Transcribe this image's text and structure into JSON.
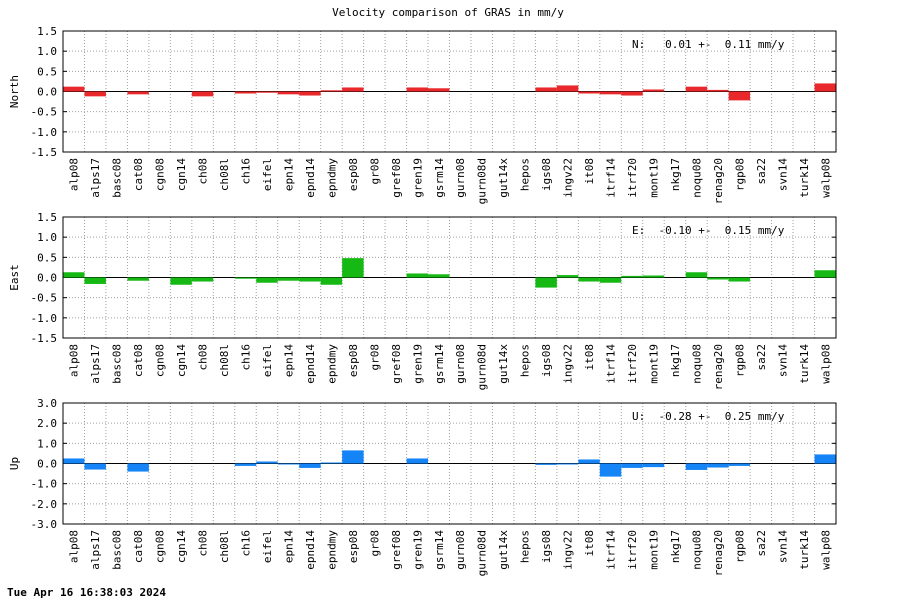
{
  "chart_data": {
    "type": "bar",
    "title": "Velocity comparison of GRAS in mm/y",
    "timestamp": "Tue Apr 16 16:38:03 2024",
    "grid": true,
    "categories": [
      "alp08",
      "alps17",
      "basc08",
      "cat08",
      "cgn08",
      "cgn14",
      "ch08",
      "ch08l",
      "ch16",
      "eifel",
      "epn14",
      "epnd14",
      "epndmy",
      "esp08",
      "gr08",
      "gref08",
      "gren19",
      "gsrm14",
      "gurn08",
      "gurn08d",
      "gut14x",
      "hepos",
      "igs08",
      "ingv22",
      "it08",
      "itrf14",
      "itrf20",
      "mont19",
      "nkg17",
      "noqu08",
      "renag20",
      "rgp08",
      "sa22",
      "svn14",
      "turk14",
      "walp08"
    ],
    "panels": [
      {
        "name": "North",
        "ylabel": "North",
        "color": "#e8282a",
        "ylim": [
          -1.5,
          1.5
        ],
        "yticks": [
          "1.5",
          "1.0",
          "0.5",
          "0.0",
          "-0.5",
          "-1.0",
          "-1.5"
        ],
        "stat": "N:   0.01 +-  0.11 mm/y",
        "values": [
          0.12,
          -0.12,
          0,
          -0.07,
          0,
          0,
          -0.12,
          0,
          -0.05,
          -0.03,
          -0.07,
          -0.1,
          0.03,
          0.1,
          0,
          0,
          0.1,
          0.08,
          0,
          0,
          0,
          0,
          0.1,
          0.15,
          -0.05,
          -0.07,
          -0.1,
          0.05,
          0,
          0.12,
          0.04,
          -0.22,
          0,
          0,
          0,
          0.2
        ]
      },
      {
        "name": "East",
        "ylabel": "East",
        "color": "#16b814",
        "ylim": [
          -1.5,
          1.5
        ],
        "yticks": [
          "1.5",
          "1.0",
          "0.5",
          "0.0",
          "-0.5",
          "-1.0",
          "-1.5"
        ],
        "stat": "E:  -0.10 +-  0.15 mm/y",
        "values": [
          0.13,
          -0.16,
          0,
          -0.08,
          0,
          -0.18,
          -0.1,
          0,
          -0.03,
          -0.13,
          -0.08,
          -0.1,
          -0.18,
          0.48,
          0,
          0,
          0.1,
          0.08,
          0,
          0,
          0,
          0,
          -0.25,
          0.06,
          -0.1,
          -0.13,
          0.04,
          0.05,
          0,
          0.13,
          -0.05,
          -0.1,
          0,
          0,
          0,
          0.18
        ]
      },
      {
        "name": "Up",
        "ylabel": "Up",
        "color": "#1584f6",
        "ylim": [
          -3.0,
          3.0
        ],
        "yticks": [
          "3.0",
          "2.0",
          "1.0",
          "0.0",
          "-1.0",
          "-2.0",
          "-3.0"
        ],
        "stat": "U:  -0.28 +-  0.25 mm/y",
        "values": [
          0.25,
          -0.3,
          0,
          -0.4,
          0,
          0,
          0,
          0,
          -0.12,
          0.1,
          -0.05,
          -0.22,
          0.05,
          0.65,
          0,
          0,
          0.25,
          0,
          0,
          0,
          0,
          0,
          -0.07,
          -0.05,
          0.2,
          -0.65,
          -0.22,
          -0.18,
          0,
          -0.32,
          -0.2,
          -0.12,
          0,
          0,
          0,
          0.45
        ]
      }
    ]
  }
}
